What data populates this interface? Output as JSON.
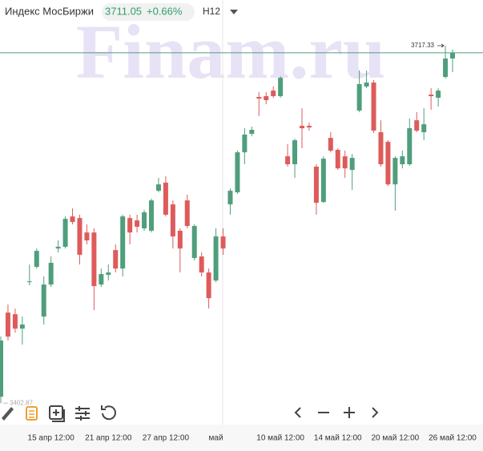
{
  "header": {
    "name": "Индекс МосБиржи",
    "price": 3711.05,
    "change": "+0.66%",
    "interval": "H12"
  },
  "chart_data": {
    "type": "candlestick",
    "watermark": "Finam.ru",
    "categories": [
      null,
      null,
      null,
      null,
      null,
      null,
      null,
      "15 апр 12:00",
      null,
      null,
      null,
      null,
      null,
      null,
      null,
      "21 апр 12:00",
      null,
      null,
      null,
      null,
      null,
      null,
      null,
      "27 апр 12:00",
      null,
      null,
      null,
      null,
      null,
      null,
      "май",
      null,
      null,
      null,
      null,
      null,
      null,
      null,
      null,
      "10 май 12:00",
      null,
      null,
      null,
      null,
      null,
      null,
      null,
      "14 май 12:00",
      null,
      null,
      null,
      null,
      null,
      null,
      null,
      "20 май 12:00",
      null,
      null,
      null,
      null,
      null,
      null,
      null,
      "26 май 12:00"
    ],
    "open": [
      3408.5,
      3482.5,
      3481.1,
      3468.4,
      3509.3,
      3522.7,
      3479.0,
      3507.2,
      3538.9,
      3540.4,
      3567.1,
      3565.7,
      3553.0,
      3553.0,
      3507.2,
      3515.7,
      3537.5,
      3521.3,
      3565.7,
      3563.6,
      3556.6,
      3554.5,
      3589.7,
      3596.8,
      3577.7,
      3554.5,
      3581.2,
      3530.5,
      3531.9,
      3517.8,
      3510.7,
      3549.5,
      3577.7,
      3588.3,
      3623.5,
      3639.8,
      3672.2,
      3672.9,
      3677.8,
      3672.9,
      3620.0,
      3613.0,
      3646.8,
      3646.8,
      3610.9,
      3579.8,
      3636.2,
      3625.7,
      3620.0,
      3608.0,
      3660.2,
      3681.4,
      3684.9,
      3641.2,
      3632.7,
      3595.3,
      3613.0,
      3613.0,
      3651.7,
      3641.2,
      3674.3,
      3671.5,
      3689.8,
      3706.0
    ],
    "high": [
      3461.4,
      3489.6,
      3486.1,
      3479.0,
      3524.8,
      3538.9,
      3514.3,
      3531.9,
      3546.0,
      3567.1,
      3574.2,
      3568.6,
      3560.1,
      3556.6,
      3521.3,
      3524.8,
      3542.5,
      3568.6,
      3568.6,
      3568.6,
      3572.8,
      3582.7,
      3601.0,
      3602.4,
      3581.2,
      3556.6,
      3586.2,
      3560.1,
      3535.4,
      3521.3,
      3556.6,
      3556.6,
      3591.8,
      3625.0,
      3644.7,
      3646.1,
      3676.4,
      3676.4,
      3681.4,
      3690.5,
      3630.6,
      3635.5,
      3662.3,
      3649.6,
      3613.0,
      3620.0,
      3641.2,
      3627.1,
      3625.0,
      3622.1,
      3695.5,
      3695.5,
      3687.0,
      3651.7,
      3634.1,
      3620.0,
      3625.0,
      3653.2,
      3658.8,
      3662.3,
      3679.9,
      3679.9,
      3717.33,
      3713.8
    ],
    "low": [
      3402.87,
      3457.9,
      3464.9,
      3454.3,
      3506.5,
      3521.3,
      3472.0,
      3505.1,
      3535.4,
      3538.9,
      3560.1,
      3524.8,
      3542.5,
      3484.7,
      3505.1,
      3510.7,
      3517.8,
      3514.3,
      3542.5,
      3553.0,
      3554.5,
      3553.0,
      3588.3,
      3567.1,
      3538.9,
      3517.8,
      3556.6,
      3528.4,
      3514.3,
      3486.1,
      3509.3,
      3533.3,
      3568.6,
      3586.9,
      3613.0,
      3637.6,
      3655.3,
      3665.8,
      3671.5,
      3671.5,
      3610.9,
      3601.0,
      3627.1,
      3642.6,
      3568.6,
      3579.1,
      3623.5,
      3608.0,
      3601.0,
      3590.4,
      3658.8,
      3679.9,
      3640.5,
      3610.9,
      3593.9,
      3572.1,
      3609.4,
      3611.6,
      3641.2,
      3634.1,
      3660.9,
      3663.7,
      3688.4,
      3694.0
    ],
    "close": [
      3457.9,
      3461.4,
      3468.4,
      3472.0,
      3510.0,
      3536.8,
      3507.2,
      3526.3,
      3540.4,
      3565.0,
      3562.2,
      3533.3,
      3546.0,
      3505.8,
      3516.4,
      3517.8,
      3521.3,
      3567.1,
      3553.0,
      3558.0,
      3570.7,
      3581.2,
      3595.3,
      3568.6,
      3549.5,
      3538.9,
      3558.7,
      3558.7,
      3517.8,
      3495.2,
      3549.5,
      3538.9,
      3589.7,
      3623.5,
      3639.1,
      3643.3,
      3670.8,
      3669.4,
      3672.9,
      3689.1,
      3613.0,
      3634.1,
      3644.7,
      3645.4,
      3579.1,
      3617.9,
      3625.0,
      3609.4,
      3609.4,
      3618.6,
      3683.5,
      3684.9,
      3642.6,
      3613.0,
      3595.3,
      3618.6,
      3620.0,
      3644.7,
      3642.6,
      3648.2,
      3672.9,
      3677.8,
      3706.0,
      3711.05
    ],
    "up_color": "#4f9e7c",
    "down_color": "#de5b5b",
    "high_marker": 3717.33,
    "low_marker": 3402.87,
    "ylim": [
      3384,
      3757.5
    ]
  }
}
